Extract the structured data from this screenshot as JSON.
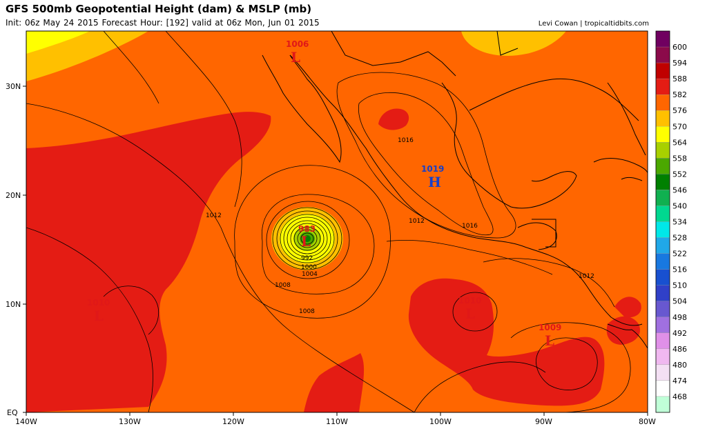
{
  "header": {
    "title": "GFS 500mb Geopotential Height (dam) & MSLP (mb)",
    "subtitle": "Init: 06z May 24 2015   Forecast Hour: [192]   valid at 06z Mon, Jun 01 2015",
    "credit": "Levi Cowan | tropicaltidbits.com"
  },
  "axes": {
    "lon_ticks": [
      "140W",
      "130W",
      "120W",
      "110W",
      "100W",
      "90W",
      "80W"
    ],
    "lat_ticks": [
      "30N",
      "20N",
      "10N",
      "EQ"
    ]
  },
  "legend": {
    "levels": [
      {
        "label": "600",
        "color": "#8b0a4a"
      },
      {
        "label": "594",
        "color": "#c00000"
      },
      {
        "label": "588",
        "color": "#e41c14"
      },
      {
        "label": "582",
        "color": "#ff6600"
      },
      {
        "label": "576",
        "color": "#ffc000"
      },
      {
        "label": "570",
        "color": "#ffff00"
      },
      {
        "label": "564",
        "color": "#a8d000"
      },
      {
        "label": "558",
        "color": "#4ba800"
      },
      {
        "label": "552",
        "color": "#008000"
      },
      {
        "label": "546",
        "color": "#10b050"
      },
      {
        "label": "540",
        "color": "#00d890"
      },
      {
        "label": "534",
        "color": "#00e8e8"
      },
      {
        "label": "528",
        "color": "#20a8e8"
      },
      {
        "label": "522",
        "color": "#1878e0"
      },
      {
        "label": "516",
        "color": "#1850d0"
      },
      {
        "label": "510",
        "color": "#3040c8"
      },
      {
        "label": "504",
        "color": "#6858d0"
      },
      {
        "label": "498",
        "color": "#a070e0"
      },
      {
        "label": "492",
        "color": "#e090e8"
      },
      {
        "label": "486",
        "color": "#f0b8f0"
      },
      {
        "label": "480",
        "color": "#f4e0f4"
      },
      {
        "label": "474",
        "color": "#ffffff"
      },
      {
        "label": "468",
        "color": "#c0ffd8"
      }
    ],
    "top_swatch": "#700060",
    "bottom_swatch": "#90f0c0"
  },
  "pressure_centers": [
    {
      "value": "1006",
      "letter": "L",
      "color": "#e01818"
    },
    {
      "value": "1019",
      "letter": "H",
      "color": "#1840c8"
    },
    {
      "value": "983",
      "letter": "L",
      "color": "#e01818"
    },
    {
      "value": "1010",
      "letter": "L",
      "color": "#e01818"
    },
    {
      "value": "1010",
      "letter": "L",
      "color": "#e01818"
    },
    {
      "value": "1009",
      "letter": "L",
      "color": "#e01818"
    }
  ],
  "contour_labels": [
    "1016",
    "1012",
    "1016",
    "1012",
    "992",
    "1000",
    "1004",
    "1008",
    "1008",
    "1012"
  ]
}
